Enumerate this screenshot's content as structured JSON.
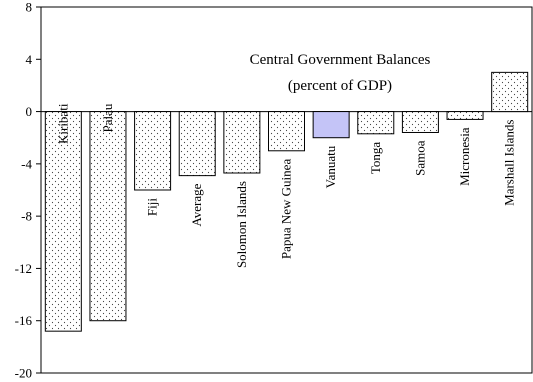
{
  "chart_data": {
    "type": "bar",
    "title": "Central Government Balances",
    "subtitle": "(percent of GDP)",
    "xlabel": "",
    "ylabel": "",
    "ylim": [
      -20,
      8
    ],
    "yticks": [
      "8",
      "4",
      "0",
      "-4",
      "-8",
      "-12",
      "-16",
      "-20"
    ],
    "ytick_values": [
      8,
      4,
      0,
      -4,
      -8,
      -12,
      -16,
      -20
    ],
    "grid": false,
    "legend": "none",
    "categories": [
      "Kiribati",
      "Palau",
      "Fiji",
      "Average",
      "Solomon Islands",
      "Papua New Guinea",
      "Vanuatu",
      "Tonga",
      "Samoa",
      "Micronesia",
      "Marshall Islands"
    ],
    "values": [
      -16.8,
      -16.0,
      -6.0,
      -4.9,
      -4.7,
      -3.0,
      -2.0,
      -1.7,
      -1.6,
      -0.6,
      3.0
    ],
    "label_side": [
      "top",
      "top",
      "bottom",
      "bottom",
      "bottom",
      "bottom",
      "bottom",
      "bottom",
      "bottom",
      "bottom",
      "bottom"
    ],
    "highlight": "Vanuatu",
    "colors": {
      "bar_pattern_fill": "#ffffff",
      "bar_pattern_dot": "#444444",
      "highlight_fill": "#c4c4f7",
      "axis": "#000000"
    }
  }
}
